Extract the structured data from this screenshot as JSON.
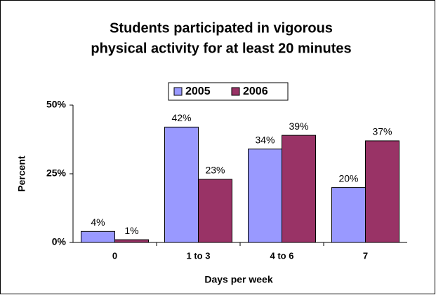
{
  "chart_data": {
    "type": "bar",
    "title": [
      "Students participated in vigorous",
      "physical activity for at least 20 minutes"
    ],
    "x_label": "Days per week",
    "y_label": "Percent",
    "categories": [
      "0",
      "1 to 3",
      "4 to 6",
      "7"
    ],
    "series": [
      {
        "name": "2005",
        "color": "#9999ff",
        "values": [
          4,
          42,
          34,
          20
        ],
        "value_labels": [
          "4%",
          "42%",
          "34%",
          "20%"
        ]
      },
      {
        "name": "2006",
        "color": "#993366",
        "values": [
          1,
          23,
          39,
          37
        ],
        "value_labels": [
          "1%",
          "23%",
          "39%",
          "37%"
        ]
      }
    ],
    "ylim": [
      0,
      50
    ],
    "yticks": [
      {
        "value": 0,
        "label": "0%"
      },
      {
        "value": 25,
        "label": "25%"
      },
      {
        "value": 50,
        "label": "50%"
      }
    ],
    "legend": "top",
    "grid": false
  }
}
